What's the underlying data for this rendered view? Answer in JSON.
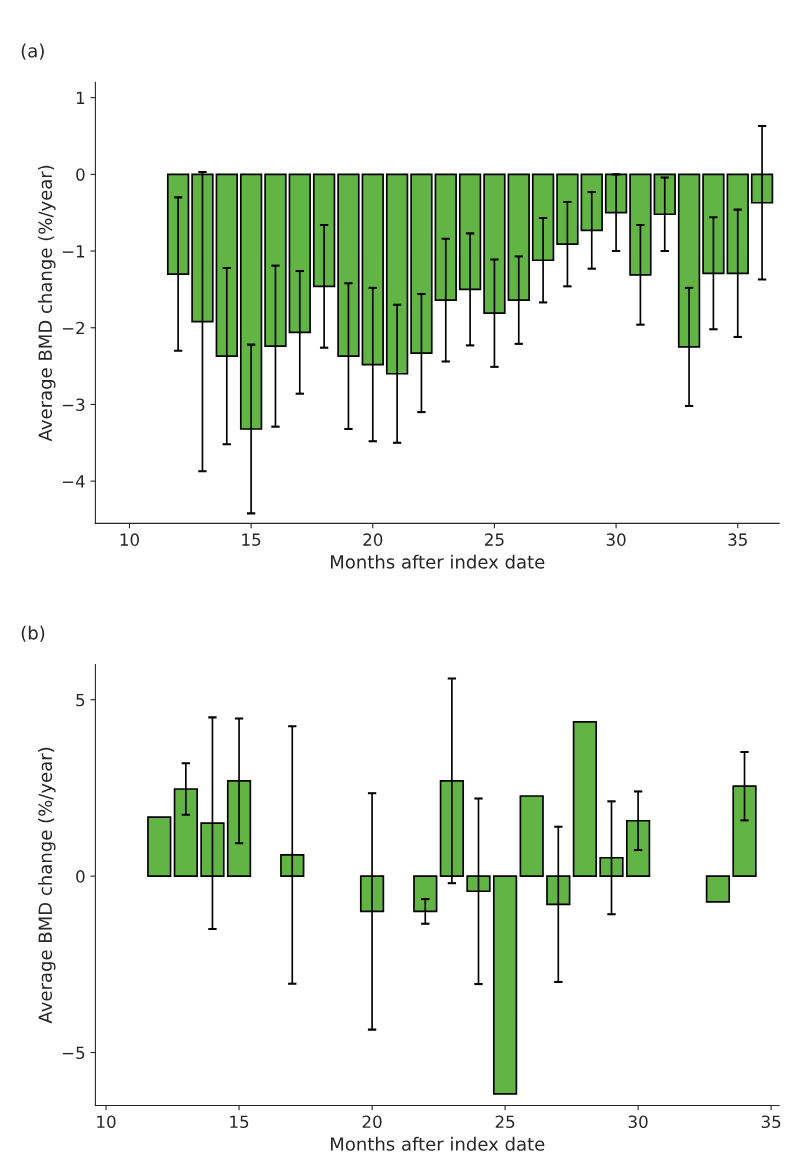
{
  "chart_data": [
    {
      "type": "bar",
      "title": "(a)",
      "xlabel": "Months after index date",
      "ylabel": "Average BMD change (%/year)",
      "x": [
        12,
        13,
        14,
        15,
        16,
        17,
        18,
        19,
        20,
        21,
        22,
        23,
        24,
        25,
        26,
        27,
        28,
        29,
        30,
        31,
        32,
        33,
        34,
        35,
        36
      ],
      "values": [
        -1.3,
        -1.92,
        -2.37,
        -3.32,
        -2.24,
        -2.06,
        -1.46,
        -2.37,
        -2.48,
        -2.6,
        -2.33,
        -1.64,
        -1.5,
        -1.81,
        -1.64,
        -1.12,
        -0.91,
        -0.73,
        -0.5,
        -1.31,
        -0.52,
        -2.25,
        -1.29,
        -1.29,
        -0.37
      ],
      "errors": [
        1.0,
        1.95,
        1.15,
        1.1,
        1.05,
        0.8,
        0.8,
        0.95,
        1.0,
        0.9,
        0.77,
        0.8,
        0.73,
        0.7,
        0.57,
        0.55,
        0.55,
        0.5,
        0.5,
        0.65,
        0.48,
        0.77,
        0.73,
        0.83,
        1.0
      ],
      "color": "#62b445",
      "xlim": [
        8.6,
        36.7
      ],
      "xticks": [
        10,
        15,
        20,
        25,
        30,
        35
      ],
      "ylim": [
        -4.55,
        1.2
      ],
      "yticks": [
        {
          "value": -4,
          "label": "−4"
        },
        {
          "value": -3,
          "label": "−3"
        },
        {
          "value": -2,
          "label": "−2"
        },
        {
          "value": -1,
          "label": "−1"
        },
        0,
        1
      ],
      "grid": false,
      "legend": false
    },
    {
      "type": "bar",
      "title": "(b)",
      "xlabel": "Months after index date",
      "ylabel": "Average BMD change (%/year)",
      "x": [
        12,
        13,
        14,
        15,
        17,
        20,
        22,
        23,
        24,
        25,
        26,
        27,
        28,
        29,
        30,
        33,
        34
      ],
      "values": [
        1.67,
        2.47,
        1.5,
        2.7,
        0.6,
        -1.0,
        -1.0,
        2.7,
        -0.43,
        -6.17,
        2.27,
        -0.8,
        4.37,
        0.52,
        1.57,
        -0.73,
        2.55
      ],
      "errors": [
        null,
        0.73,
        3.0,
        1.77,
        3.65,
        3.35,
        0.35,
        2.9,
        2.63,
        null,
        null,
        2.2,
        null,
        1.6,
        0.83,
        null,
        0.97
      ],
      "color": "#62b445",
      "xlim": [
        9.6,
        35.3
      ],
      "xticks": [
        10,
        15,
        20,
        25,
        30,
        35
      ],
      "ylim": [
        -6.5,
        6
      ],
      "yticks": [
        {
          "value": -5,
          "label": "−5"
        },
        0,
        5
      ],
      "grid": false,
      "legend": false
    }
  ]
}
